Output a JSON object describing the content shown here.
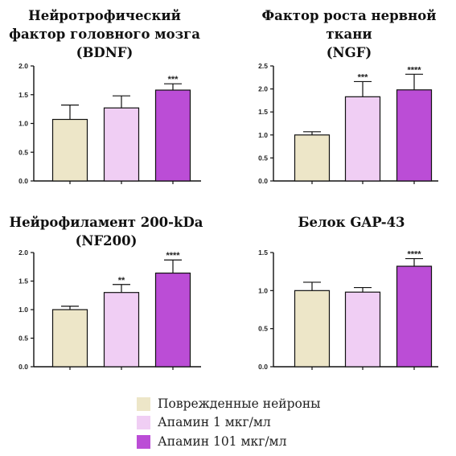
{
  "colors": {
    "series": [
      "#ede6c8",
      "#f0cef4",
      "#bb4dd6"
    ],
    "axis": "#111111"
  },
  "legend": {
    "entries": [
      "Поврежденные нейроны",
      "Апамин 1 мкг/мл",
      "Апамин 101 мкг/мл"
    ]
  },
  "chart_data": [
    {
      "type": "bar",
      "title": [
        "Нейротрофический",
        "фактор головного мозга",
        "(BDNF)"
      ],
      "categories": [
        "Поврежденные нейроны",
        "Апамин 1 мкг/мл",
        "Апамин 101 мкг/мл"
      ],
      "values": [
        1.07,
        1.27,
        1.58
      ],
      "errors": [
        0.25,
        0.21,
        0.11
      ],
      "significance": [
        "",
        "",
        "***"
      ],
      "ylim": [
        0,
        2.0
      ],
      "yticks": [
        "0.0",
        "0.5",
        "1.0",
        "1.5",
        "2.0"
      ],
      "ytick_values": [
        0,
        0.5,
        1.0,
        1.5,
        2.0
      ]
    },
    {
      "type": "bar",
      "title": [
        "Фактор роста нервной",
        "ткани",
        "(NGF)"
      ],
      "categories": [
        "Поврежденные нейроны",
        "Апамин 1 мкг/мл",
        "Апамин 101 мкг/мл"
      ],
      "values": [
        1.0,
        1.83,
        1.98
      ],
      "errors": [
        0.07,
        0.33,
        0.34
      ],
      "significance": [
        "",
        "***",
        "****"
      ],
      "ylim": [
        0,
        2.5
      ],
      "yticks": [
        "0.0",
        "0.5",
        "1.0",
        "1.5",
        "2.0",
        "2.5"
      ],
      "ytick_values": [
        0,
        0.5,
        1.0,
        1.5,
        2.0,
        2.5
      ]
    },
    {
      "type": "bar",
      "title": [
        "Нейрофиламент 200-kDa",
        "(NF200)"
      ],
      "categories": [
        "Поврежденные нейроны",
        "Апамин 1 мкг/мл",
        "Апамин 101 мкг/мл"
      ],
      "values": [
        1.0,
        1.3,
        1.64
      ],
      "errors": [
        0.06,
        0.14,
        0.23
      ],
      "significance": [
        "",
        "**",
        "****"
      ],
      "ylim": [
        0,
        2.0
      ],
      "yticks": [
        "0.0",
        "0.5",
        "1.0",
        "1.5",
        "2.0"
      ],
      "ytick_values": [
        0,
        0.5,
        1.0,
        1.5,
        2.0
      ]
    },
    {
      "type": "bar",
      "title": [
        "Белок GAP-43"
      ],
      "categories": [
        "Поврежденные нейроны",
        "Апамин 1 мкг/мл",
        "Апамин 101 мкг/мл"
      ],
      "values": [
        1.0,
        0.98,
        1.32
      ],
      "errors": [
        0.11,
        0.06,
        0.1
      ],
      "significance": [
        "",
        "",
        "****"
      ],
      "ylim": [
        0,
        1.5
      ],
      "yticks": [
        "0.0",
        "0.5",
        "1.0",
        "1.5"
      ],
      "ytick_values": [
        0,
        0.5,
        1.0,
        1.5
      ]
    }
  ]
}
